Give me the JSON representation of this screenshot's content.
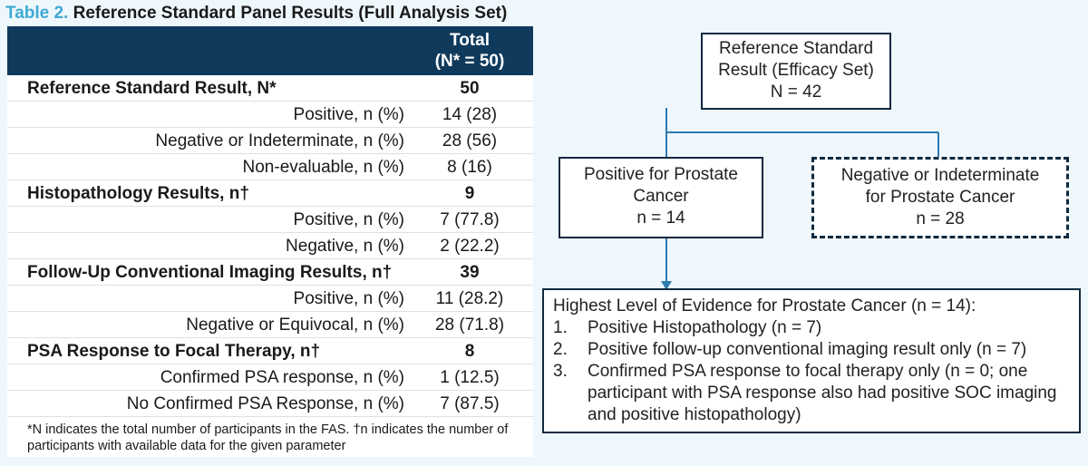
{
  "table": {
    "title_number": "Table 2.",
    "title_text": "Reference Standard Panel Results (Full Analysis Set)",
    "col_header_line1": "Total",
    "col_header_line2": "(N* = 50)",
    "rows": [
      {
        "label": "Reference Standard Result, N*",
        "value": "50",
        "kind": "head"
      },
      {
        "label": "Positive, n (%)",
        "value": "14 (28)",
        "kind": "sub"
      },
      {
        "label": "Negative or Indeterminate, n (%)",
        "value": "28 (56)",
        "kind": "sub"
      },
      {
        "label": "Non-evaluable, n (%)",
        "value": "8 (16)",
        "kind": "sub"
      },
      {
        "label": "Histopathology Results, n†",
        "value": "9",
        "kind": "head"
      },
      {
        "label": "Positive, n (%)",
        "value": "7 (77.8)",
        "kind": "sub"
      },
      {
        "label": "Negative, n (%)",
        "value": "2 (22.2)",
        "kind": "sub"
      },
      {
        "label": "Follow-Up Conventional Imaging Results, n†",
        "value": "39",
        "kind": "head"
      },
      {
        "label": "Positive, n (%)",
        "value": "11 (28.2)",
        "kind": "sub"
      },
      {
        "label": "Negative or Equivocal, n (%)",
        "value": "28 (71.8)",
        "kind": "sub"
      },
      {
        "label": "PSA Response to Focal Therapy, n†",
        "value": "8",
        "kind": "head"
      },
      {
        "label": "Confirmed PSA response, n (%)",
        "value": "1 (12.5)",
        "kind": "sub"
      },
      {
        "label": "No Confirmed PSA Response, n (%)",
        "value": "7 (87.5)",
        "kind": "sub"
      }
    ],
    "footnote": "*N indicates the total number of participants in the FAS. †n indicates the number of participants with available data for the given parameter"
  },
  "flowchart": {
    "top": {
      "lines": [
        "Reference Standard",
        "Result (Efficacy Set)",
        "N = 42"
      ]
    },
    "positive": {
      "lines": [
        "Positive for Prostate",
        "Cancer",
        "n = 14"
      ]
    },
    "negative": {
      "lines": [
        "Negative or Indeterminate",
        "for Prostate Cancer",
        "n = 28"
      ]
    },
    "evidence": {
      "title": "Highest Level of Evidence for Prostate Cancer (n = 14):",
      "items": [
        {
          "num": "1.",
          "text": "Positive Histopathology (n = 7)"
        },
        {
          "num": "2.",
          "text": "Positive follow-up conventional imaging result only (n = 7)"
        },
        {
          "num": "3.",
          "text": "Confirmed PSA response to focal therapy only (n = 0; one participant with PSA response also had positive SOC imaging and positive histopathology)"
        }
      ]
    }
  },
  "colors": {
    "header_bg": "#0f3a5c",
    "title_accent": "#3fa9d3",
    "connector": "#2e7bb0",
    "page_bg": "#eef7fb"
  }
}
